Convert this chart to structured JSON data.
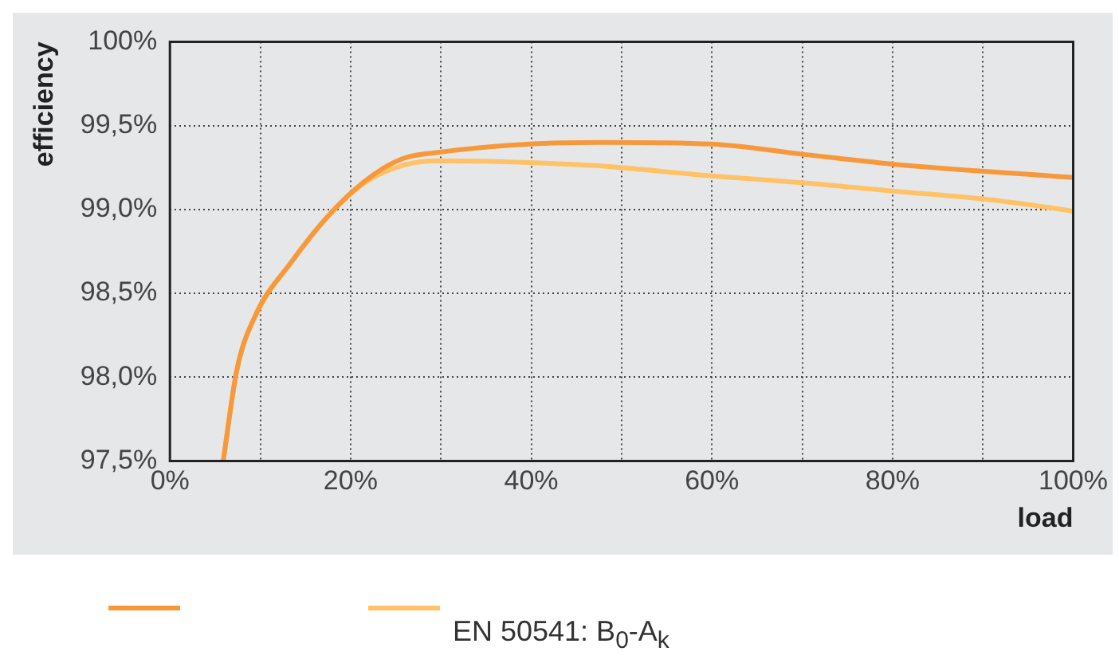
{
  "chart_data": {
    "type": "line",
    "xlabel": "load",
    "ylabel": "efficiency",
    "xlim": [
      0,
      100
    ],
    "xticks": [
      {
        "value": 0,
        "label": "0%"
      },
      {
        "value": 10,
        "label": null
      },
      {
        "value": 20,
        "label": "20%"
      },
      {
        "value": 30,
        "label": null
      },
      {
        "value": 40,
        "label": "40%"
      },
      {
        "value": 50,
        "label": null
      },
      {
        "value": 60,
        "label": "60%"
      },
      {
        "value": 70,
        "label": null
      },
      {
        "value": 80,
        "label": "80%"
      },
      {
        "value": 90,
        "label": null
      },
      {
        "value": 100,
        "label": "100%"
      }
    ],
    "ylim": [
      97.5,
      100
    ],
    "yticks": [
      {
        "value": 97.5,
        "label": "97,5%"
      },
      {
        "value": 98,
        "label": "98,0%"
      },
      {
        "value": 98.5,
        "label": "98,5%"
      },
      {
        "value": 99,
        "label": "99,0%"
      },
      {
        "value": 99.5,
        "label": "99,5%"
      },
      {
        "value": 100,
        "label": "100%"
      }
    ],
    "grid": true,
    "legend": "bottom",
    "marker": "none",
    "line_style": "solid",
    "series": [
      {
        "color": "#f7993a",
        "x": [
          5.9,
          7.4,
          9.4,
          13.5,
          17.5,
          21.6,
          25.6,
          29.7,
          39.8,
          47.5,
          59.9,
          69.9,
          80,
          100
        ],
        "values": [
          97.5,
          98.04,
          98.36,
          98.69,
          98.96,
          99.17,
          99.3,
          99.34,
          99.39,
          99.4,
          99.39,
          99.33,
          99.27,
          99.19
        ]
      },
      {
        "name": "EN 50541: B$_{0}$-A$_{k}$",
        "color": "#ffc266",
        "x": [
          5.9,
          7.4,
          9.4,
          13.5,
          17.5,
          21.6,
          25.6,
          29.7,
          39.8,
          47.5,
          59.9,
          69.9,
          80,
          90.5,
          100
        ],
        "values": [
          97.5,
          98.04,
          98.36,
          98.69,
          98.96,
          99.16,
          99.26,
          99.29,
          99.28,
          99.26,
          99.2,
          99.16,
          99.11,
          99.06,
          98.99
        ]
      }
    ]
  }
}
